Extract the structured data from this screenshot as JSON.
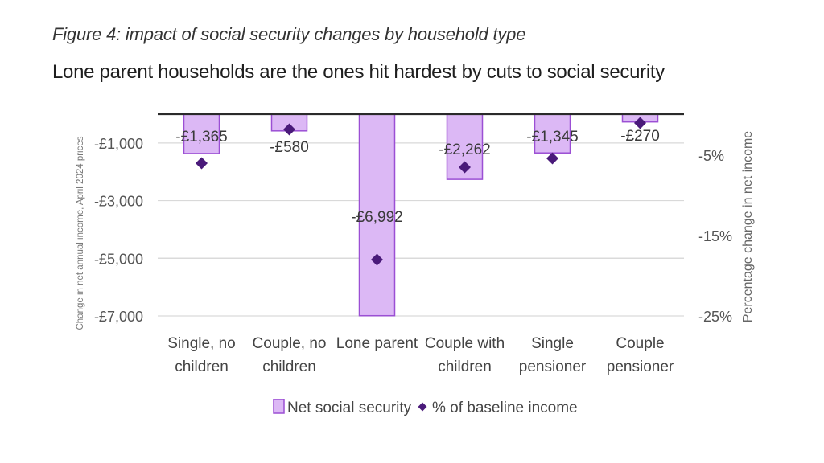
{
  "header": {
    "title": "Figure 4: impact of social security changes by household type",
    "subtitle": "Lone parent households are the ones hit hardest by cuts to social security"
  },
  "chart_data": {
    "type": "bar",
    "categories": [
      [
        "Single, no",
        "children"
      ],
      [
        "Couple, no",
        "children"
      ],
      [
        "Lone parent"
      ],
      [
        "Couple with",
        "children"
      ],
      [
        "Single",
        "pensioner"
      ],
      [
        "Couple",
        "pensioner"
      ]
    ],
    "series": [
      {
        "name": "Net social security",
        "axis": "left",
        "values": [
          -1365,
          -580,
          -6992,
          -2262,
          -1345,
          -270
        ],
        "data_labels": [
          "-£1,365",
          "-£580",
          "-£6,992",
          "-£2,262",
          "-£1,345",
          "-£270"
        ],
        "fill": "#dcb8f5",
        "stroke": "#9b4fd4"
      },
      {
        "name": "% of baseline income",
        "axis": "right",
        "type": "scatter",
        "marker": "diamond",
        "values": [
          -6.0,
          -1.8,
          -18.0,
          -6.5,
          -5.4,
          -1.0
        ],
        "color": "#4a1a7a"
      }
    ],
    "left_axis": {
      "label": "Change in net annual income, April 2024 prices",
      "range": [
        -7000,
        1000
      ],
      "ticks": [
        -1000,
        -3000,
        -5000,
        -7000
      ],
      "tick_labels": [
        "-£1,000",
        "-£3,000",
        "-£5,000",
        "-£7,000"
      ]
    },
    "right_axis": {
      "label": "Percentage change in net income",
      "range": [
        -25,
        3
      ],
      "ticks": [
        -5,
        -15,
        -25
      ],
      "tick_labels": [
        "-5%",
        "-15%",
        "-25%"
      ]
    },
    "zero_line": true,
    "grid": true,
    "legend": "bottom-center"
  }
}
